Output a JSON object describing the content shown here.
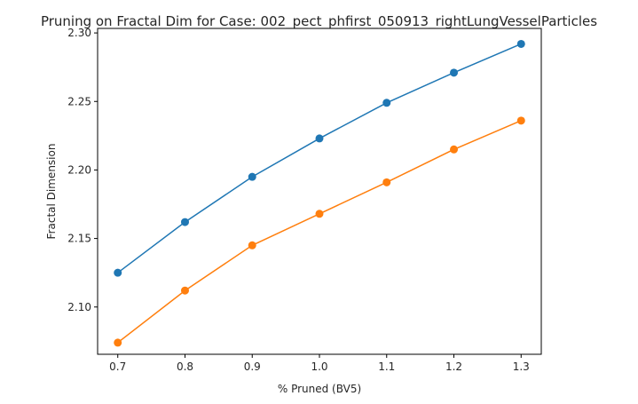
{
  "chart_data": {
    "type": "line",
    "title": "Pruning on Fractal Dim for Case: 002_pect_phfirst_050913_rightLungVesselParticles",
    "xlabel": "% Pruned (BV5)",
    "ylabel": "Fractal Dimension",
    "x": [
      0.7,
      0.8,
      0.9,
      1.0,
      1.1,
      1.2,
      1.3
    ],
    "x_ticks": [
      "0.7",
      "0.8",
      "0.9",
      "1.0",
      "1.1",
      "1.2",
      "1.3"
    ],
    "y_ticks": [
      "2.10",
      "2.15",
      "2.20",
      "2.25",
      "2.30"
    ],
    "xlim": [
      0.67,
      1.33
    ],
    "ylim": [
      2.0655,
      2.3033
    ],
    "grid": false,
    "series": [
      {
        "color": "#1f77b4",
        "values": [
          2.125,
          2.162,
          2.195,
          2.223,
          2.249,
          2.271,
          2.292
        ]
      },
      {
        "color": "#ff7f0e",
        "values": [
          2.074,
          2.112,
          2.145,
          2.168,
          2.191,
          2.215,
          2.236
        ]
      }
    ]
  }
}
